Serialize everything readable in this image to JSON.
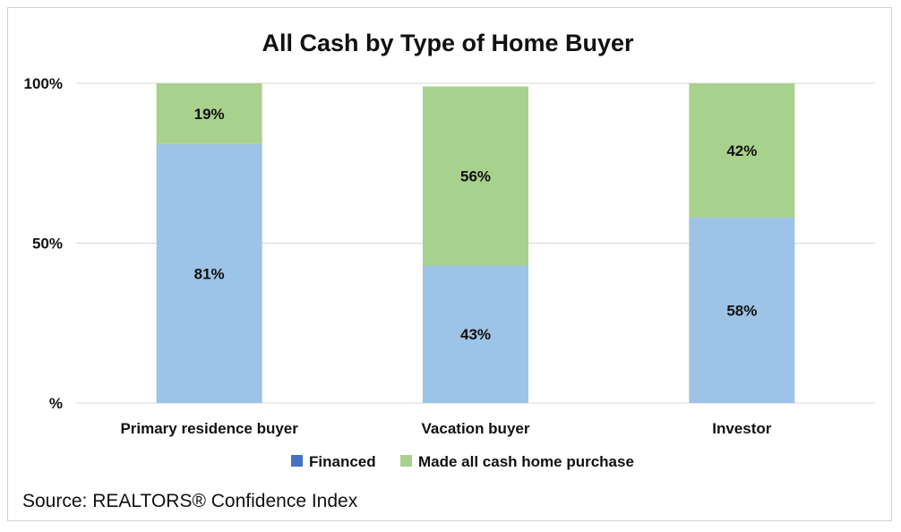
{
  "chart_data": {
    "type": "bar",
    "stacked": true,
    "title": "All Cash by Type of Home Buyer",
    "categories": [
      "Primary residence buyer",
      "Vacation buyer",
      "Investor"
    ],
    "series": [
      {
        "name": "Financed",
        "color": "#9dc3e6",
        "legend_color": "#4472c4",
        "values": [
          81,
          43,
          58
        ],
        "labels": [
          "81%",
          "43%",
          "58%"
        ]
      },
      {
        "name": "Made all cash home purchase",
        "color": "#a9d18e",
        "legend_color": "#a9d18e",
        "values": [
          19,
          56,
          42
        ],
        "labels": [
          "19%",
          "56%",
          "42%"
        ]
      }
    ],
    "yticks": [
      0,
      50,
      100
    ],
    "ytick_labels": [
      "%",
      "50%",
      "100%"
    ],
    "ylim": [
      0,
      100
    ],
    "grid": true,
    "legend_position": "bottom"
  },
  "source": "Source: REALTORS® Confidence Index"
}
